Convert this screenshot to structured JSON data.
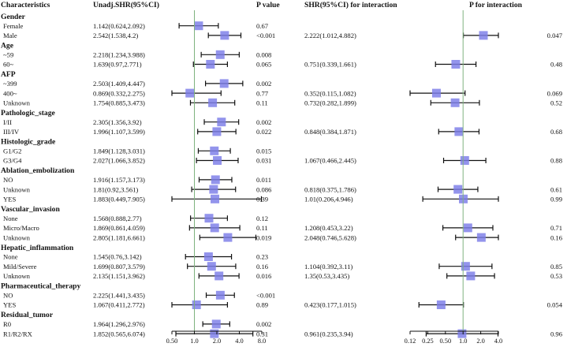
{
  "chart_data": {
    "type": "forest",
    "title": "",
    "headers": {
      "characteristics": "Characteristics",
      "shr1": "Unadj.SHR(95%CI)",
      "p1": "P value",
      "shr2": "SHR(95%CI) for interaction",
      "p2": "P for interaction"
    },
    "ref_value": 1.0,
    "panel1": {
      "xscale": "log2",
      "xlim": [
        0.5,
        8.0
      ],
      "ticks": [
        "0.50",
        "1.0",
        "2.0",
        "4.0",
        "8.0"
      ],
      "tick_values": [
        0.5,
        1,
        2,
        4,
        8
      ]
    },
    "panel2": {
      "xscale": "log2",
      "xlim": [
        0.125,
        4.0
      ],
      "ticks": [
        "0.12",
        "0.25",
        "0.50",
        "1.0",
        "2.0",
        "4.0"
      ],
      "tick_values": [
        0.125,
        0.25,
        0.5,
        1,
        2,
        4
      ]
    },
    "rows": [
      {
        "kind": "group",
        "label": "Gender"
      },
      {
        "kind": "item",
        "label": "Female",
        "shr1": "1.142(0.624,2.092)",
        "est1": 1.142,
        "lo1": 0.624,
        "hi1": 2.092,
        "p1": "0.67"
      },
      {
        "kind": "item",
        "label": "Male",
        "shr1": "2.542(1.538,4.2)",
        "est1": 2.542,
        "lo1": 1.538,
        "hi1": 4.2,
        "p1": "<0.001",
        "shr2": "2.222(1.012,4.882)",
        "est2": 2.222,
        "lo2": 1.012,
        "hi2": 4.882,
        "p2": "0.047"
      },
      {
        "kind": "group",
        "label": "Age"
      },
      {
        "kind": "item",
        "label": "~59",
        "shr1": "2.218(1.234,3.988)",
        "est1": 2.218,
        "lo1": 1.234,
        "hi1": 3.988,
        "p1": "0.008"
      },
      {
        "kind": "item",
        "label": "60~",
        "shr1": "1.639(0.97,2.771)",
        "est1": 1.639,
        "lo1": 0.97,
        "hi1": 2.771,
        "p1": "0.065",
        "shr2": "0.751(0.339,1.661)",
        "est2": 0.751,
        "lo2": 0.339,
        "hi2": 1.661,
        "p2": "0.48"
      },
      {
        "kind": "group",
        "label": "AFP"
      },
      {
        "kind": "item",
        "label": "~399",
        "shr1": "2.503(1.409,4.447)",
        "est1": 2.503,
        "lo1": 1.409,
        "hi1": 4.447,
        "p1": "0.002"
      },
      {
        "kind": "item",
        "label": "400~",
        "shr1": "0.869(0.332,2.275)",
        "est1": 0.869,
        "lo1": 0.332,
        "hi1": 2.275,
        "p1": "0.77",
        "shr2": "0.352(0.115,1.082)",
        "est2": 0.352,
        "lo2": 0.115,
        "hi2": 1.082,
        "p2": "0.069"
      },
      {
        "kind": "item",
        "label": "Unknown",
        "shr1": "1.754(0.885,3.473)",
        "est1": 1.754,
        "lo1": 0.885,
        "hi1": 3.473,
        "p1": "0.11",
        "shr2": "0.732(0.282,1.899)",
        "est2": 0.732,
        "lo2": 0.282,
        "hi2": 1.899,
        "p2": "0.52"
      },
      {
        "kind": "group",
        "label": "Pathologic_stage"
      },
      {
        "kind": "item",
        "label": "I/II",
        "shr1": "2.305(1.356,3.92)",
        "est1": 2.305,
        "lo1": 1.356,
        "hi1": 3.92,
        "p1": "0.002"
      },
      {
        "kind": "item",
        "label": "III/IV",
        "shr1": "1.996(1.107,3.599)",
        "est1": 1.996,
        "lo1": 1.107,
        "hi1": 3.599,
        "p1": "0.022",
        "shr2": "0.848(0.384,1.871)",
        "est2": 0.848,
        "lo2": 0.384,
        "hi2": 1.871,
        "p2": "0.68"
      },
      {
        "kind": "group",
        "label": "Histologic_grade"
      },
      {
        "kind": "item",
        "label": "G1/G2",
        "shr1": "1.849(1.128,3.031)",
        "est1": 1.849,
        "lo1": 1.128,
        "hi1": 3.031,
        "p1": "0.015"
      },
      {
        "kind": "item",
        "label": "G3/G4",
        "shr1": "2.027(1.066,3.852)",
        "est1": 2.027,
        "lo1": 1.066,
        "hi1": 3.852,
        "p1": "0.031",
        "shr2": "1.067(0.466,2.445)",
        "est2": 1.067,
        "lo2": 0.466,
        "hi2": 2.445,
        "p2": "0.88"
      },
      {
        "kind": "group",
        "label": "Ablation_embolization"
      },
      {
        "kind": "item",
        "label": "NO",
        "shr1": "1.916(1.157,3.173)",
        "est1": 1.916,
        "lo1": 1.157,
        "hi1": 3.173,
        "p1": "0.011"
      },
      {
        "kind": "item",
        "label": "Unknown",
        "shr1": "1.81(0.92,3.561)",
        "est1": 1.81,
        "lo1": 0.92,
        "hi1": 3.561,
        "p1": "0.086",
        "shr2": "0.818(0.375,1.786)",
        "est2": 0.818,
        "lo2": 0.375,
        "hi2": 1.786,
        "p2": "0.61"
      },
      {
        "kind": "item",
        "label": "YES",
        "shr1": "1.883(0.449,7.905)",
        "est1": 1.883,
        "lo1": 0.449,
        "hi1": 7.905,
        "p1": "0.39",
        "shr2": "1.01(0.206,4.946)",
        "est2": 1.01,
        "lo2": 0.206,
        "hi2": 4.946,
        "p2": "0.99"
      },
      {
        "kind": "group",
        "label": "Vascular_invasion"
      },
      {
        "kind": "item",
        "label": "None",
        "shr1": "1.568(0.888,2.77)",
        "est1": 1.568,
        "lo1": 0.888,
        "hi1": 2.77,
        "p1": "0.12"
      },
      {
        "kind": "item",
        "label": "Micro/Macro",
        "shr1": "1.869(0.861,4.059)",
        "est1": 1.869,
        "lo1": 0.861,
        "hi1": 4.059,
        "p1": "0.11",
        "shr2": "1.208(0.453,3.22)",
        "est2": 1.208,
        "lo2": 0.453,
        "hi2": 3.22,
        "p2": "0.71"
      },
      {
        "kind": "item",
        "label": "Unknown",
        "shr1": "2.805(1.181,6.661)",
        "est1": 2.805,
        "lo1": 1.181,
        "hi1": 6.661,
        "p1": "0.019",
        "shr2": "2.048(0.746,5.628)",
        "est2": 2.048,
        "lo2": 0.746,
        "hi2": 5.628,
        "p2": "0.16"
      },
      {
        "kind": "group",
        "label": "Hepatic_inflammation"
      },
      {
        "kind": "item",
        "label": "None",
        "shr1": "1.545(0.76,3.142)",
        "est1": 1.545,
        "lo1": 0.76,
        "hi1": 3.142,
        "p1": "0.23"
      },
      {
        "kind": "item",
        "label": "Mild/Severe",
        "shr1": "1.699(0.807,3.579)",
        "est1": 1.699,
        "lo1": 0.807,
        "hi1": 3.579,
        "p1": "0.16",
        "shr2": "1.104(0.392,3.11)",
        "est2": 1.104,
        "lo2": 0.392,
        "hi2": 3.11,
        "p2": "0.85"
      },
      {
        "kind": "item",
        "label": "Unknown",
        "shr1": "2.135(1.151,3.962)",
        "est1": 2.135,
        "lo1": 1.151,
        "hi1": 3.962,
        "p1": "0.016",
        "shr2": "1.35(0.53,3.435)",
        "est2": 1.35,
        "lo2": 0.53,
        "hi2": 3.435,
        "p2": "0.53"
      },
      {
        "kind": "group",
        "label": "Pharmaceutical_therapy"
      },
      {
        "kind": "item",
        "label": "NO",
        "shr1": "2.225(1.441,3.435)",
        "est1": 2.225,
        "lo1": 1.441,
        "hi1": 3.435,
        "p1": "<0.001"
      },
      {
        "kind": "item",
        "label": "YES",
        "shr1": "1.067(0.411,2.772)",
        "est1": 1.067,
        "lo1": 0.411,
        "hi1": 2.772,
        "p1": "0.89",
        "shr2": "0.423(0.177,1.015)",
        "est2": 0.423,
        "lo2": 0.177,
        "hi2": 1.015,
        "p2": "0.054"
      },
      {
        "kind": "group",
        "label": "Residual_tumor"
      },
      {
        "kind": "item",
        "label": "R0",
        "shr1": "1.964(1.296,2.976)",
        "est1": 1.964,
        "lo1": 1.296,
        "hi1": 2.976,
        "p1": "0.002"
      },
      {
        "kind": "item",
        "label": "R1/R2/RX",
        "shr1": "1.852(0.565,6.074)",
        "est1": 1.852,
        "lo1": 0.565,
        "hi1": 6.074,
        "p1": "0.31",
        "shr2": "0.961(0.235,3.94)",
        "est2": 0.961,
        "lo2": 0.235,
        "hi2": 3.94,
        "p2": "0.96"
      }
    ]
  }
}
